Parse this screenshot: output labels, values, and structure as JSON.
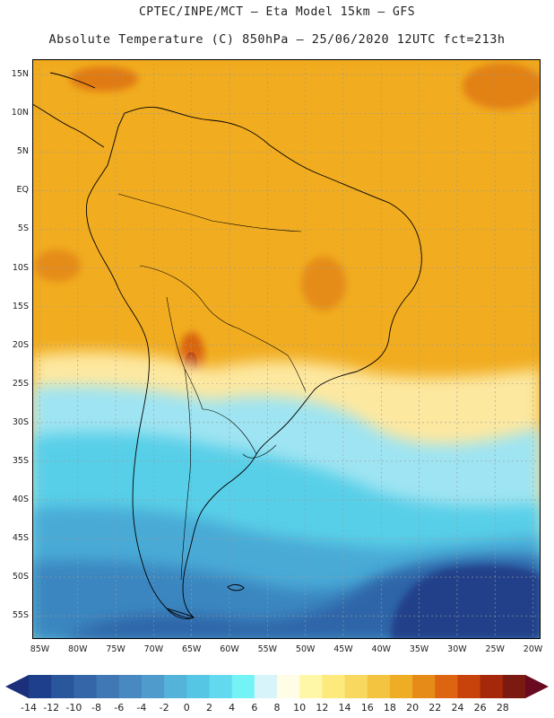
{
  "header": {
    "line1": "CPTEC/INPE/MCT –  Eta Model 15km – GFS",
    "line2": "Absolute Temperature (C) 850hPa – 25/06/2020 12UTC fct=213h"
  },
  "map": {
    "lat_range": [
      -58,
      17
    ],
    "lon_range": [
      -86,
      -19
    ],
    "lat_labels": [
      "15N",
      "10N",
      "5N",
      "EQ",
      "5S",
      "10S",
      "15S",
      "20S",
      "25S",
      "30S",
      "35S",
      "40S",
      "45S",
      "50S",
      "55S"
    ],
    "lat_values": [
      15,
      10,
      5,
      0,
      -5,
      -10,
      -15,
      -20,
      -25,
      -30,
      -35,
      -40,
      -45,
      -50,
      -55
    ],
    "lon_labels": [
      "85W",
      "80W",
      "75W",
      "70W",
      "65W",
      "60W",
      "55W",
      "50W",
      "45W",
      "40W",
      "35W",
      "30W",
      "25W",
      "20W"
    ],
    "lon_values": [
      -85,
      -80,
      -75,
      -70,
      -65,
      -60,
      -55,
      -50,
      -45,
      -40,
      -35,
      -30,
      -25,
      -20
    ]
  },
  "colorbar": {
    "labels": [
      "-14",
      "-12",
      "-10",
      "-8",
      "-6",
      "-4",
      "-2",
      "0",
      "2",
      "4",
      "6",
      "8",
      "10",
      "12",
      "14",
      "16",
      "18",
      "20",
      "22",
      "24",
      "26",
      "28"
    ],
    "colors": [
      "#1e3f8c",
      "#2a579c",
      "#3566a8",
      "#3f78b4",
      "#4789c0",
      "#4f9ccc",
      "#55b2d8",
      "#55c6e4",
      "#63d9ef",
      "#74f3f7",
      "#d6f4fa",
      "#fffde6",
      "#fff7a8",
      "#fdea7d",
      "#f8d85e",
      "#f3c43f",
      "#eead24",
      "#e68a18",
      "#dd6410",
      "#c8420c",
      "#a5280a",
      "#7a1a10"
    ],
    "low_arrow_color": "#1b2f7a",
    "high_arrow_color": "#6a0a20"
  },
  "field_colors": {
    "hot": "#f0a418",
    "warm": "#f3b72a",
    "hotspot": "#d9650f",
    "hotcore": "#b8400c",
    "mild": "#fde8a0",
    "cool": "#9fe4f2",
    "cold1": "#58cfe8",
    "cold2": "#4aaad6",
    "cold3": "#3a86c0",
    "cold4": "#2d65a8",
    "cold5": "#203f8a",
    "grid": "#9a9a9a",
    "land": "#000000"
  }
}
